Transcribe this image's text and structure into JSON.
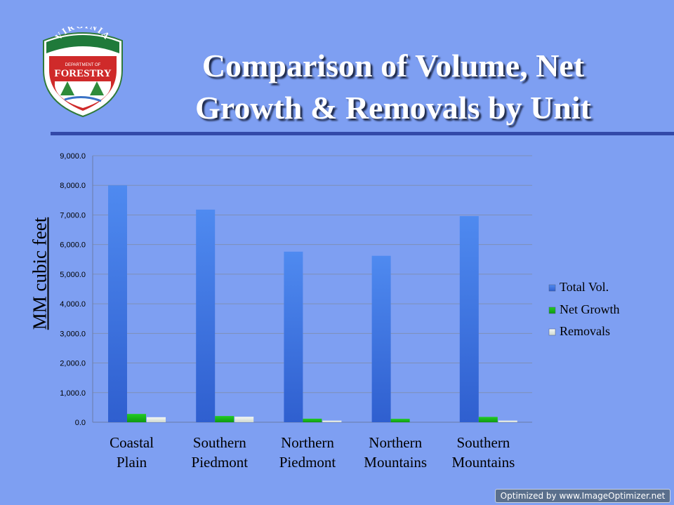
{
  "slide": {
    "title_line1": "Comparison of Volume, Net",
    "title_line2": "Growth & Removals by Unit",
    "logo": {
      "top_text": "VIRGINIA",
      "mid_text": "DEPARTMENT OF",
      "main_text": "FORESTRY"
    },
    "watermark": "Optimized by www.ImageOptimizer.net",
    "colors": {
      "background": "#7e9ff2",
      "rule": "#3349a8",
      "total_vol": "#3f78e0",
      "net_growth": "#18b818",
      "removals": "#e6eee6"
    }
  },
  "chart_data": {
    "type": "bar",
    "title": "Comparison of Volume, Net Growth & Removals by Unit",
    "ylabel": "MM cubic feet",
    "xlabel": "",
    "ylim": [
      0,
      9000
    ],
    "yticks": [
      "0.0",
      "1,000.0",
      "2,000.0",
      "3,000.0",
      "4,000.0",
      "5,000.0",
      "6,000.0",
      "7,000.0",
      "8,000.0",
      "9,000.0"
    ],
    "grid": true,
    "legend_position": "right",
    "categories": [
      [
        "Coastal",
        "Plain"
      ],
      [
        "Southern",
        "Piedmont"
      ],
      [
        "Northern",
        "Piedmont"
      ],
      [
        "Northern",
        "Mountains"
      ],
      [
        "Southern",
        "Mountains"
      ]
    ],
    "series": [
      {
        "name": "Total Vol.",
        "values": [
          8000,
          7180,
          5760,
          5620,
          6960
        ]
      },
      {
        "name": "Net Growth",
        "values": [
          280,
          210,
          120,
          115,
          180
        ]
      },
      {
        "name": "Removals",
        "values": [
          170,
          185,
          55,
          0,
          55
        ]
      }
    ]
  }
}
